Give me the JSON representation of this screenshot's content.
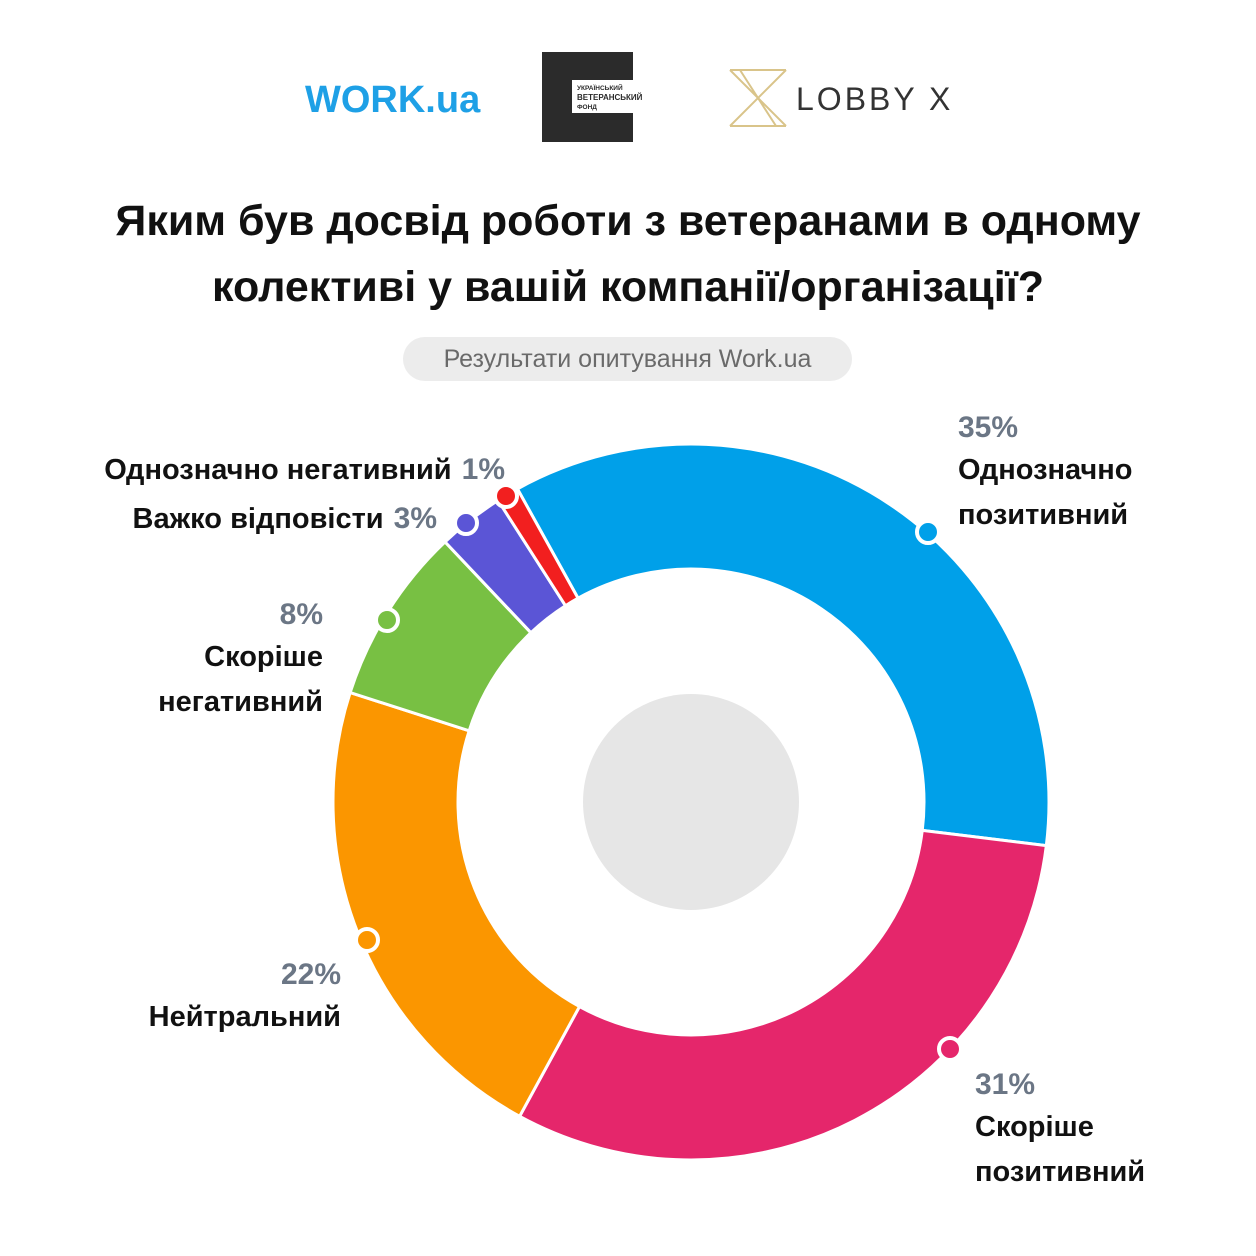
{
  "logos": {
    "work": "WORK.ua",
    "fund": [
      "УКРАЇНСЬКИЙ",
      "ВЕТЕРАНСЬКИЙ",
      "ФОНД"
    ],
    "lobby": "LOBBY X"
  },
  "chart_data": {
    "type": "pie",
    "donut": true,
    "title": "Яким був досвід роботи з ветеранами в одному колективі у вашій компанії/організації?",
    "subtitle": "Результати опитування Work.ua",
    "categories": [
      "Однозначно позитивний",
      "Скоріше позитивний",
      "Нейтральний",
      "Скоріше негативний",
      "Важко відповісти",
      "Однозначно негативний"
    ],
    "values": [
      35,
      31,
      22,
      8,
      3,
      1
    ],
    "value_labels": [
      "35%",
      "31%",
      "22%",
      "8%",
      "3%",
      "1%"
    ],
    "colors": [
      "#00a0e9",
      "#e5266b",
      "#fb9600",
      "#78c043",
      "#5b55d6",
      "#f21f1f"
    ]
  }
}
